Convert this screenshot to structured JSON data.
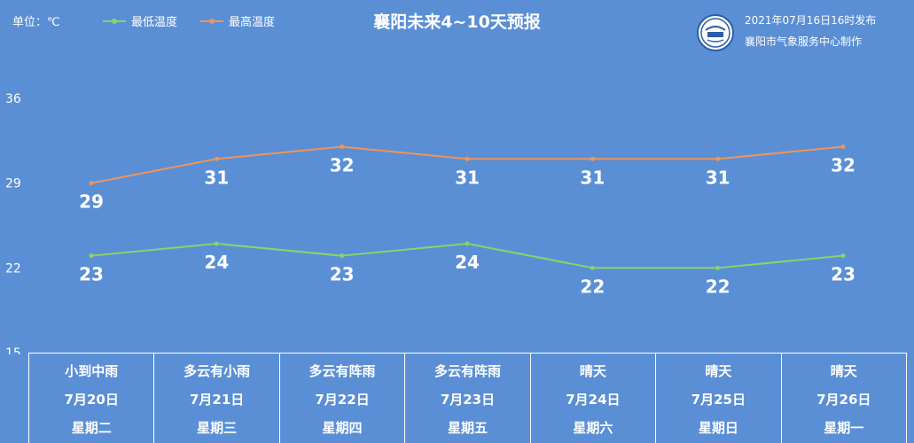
{
  "header": {
    "unit": "单位：℃",
    "title": "襄阳未来4~10天预报",
    "publish_time": "2021年07月16日16时发布",
    "org": "襄阳市气象服务中心制作"
  },
  "colors": {
    "background": "#5a8fd6",
    "min_line": "#8ed16a",
    "max_line": "#f0955a"
  },
  "chart_data": {
    "type": "line",
    "title": "襄阳未来4~10天预报",
    "ylabel": "单位：℃",
    "ylim": [
      15,
      36
    ],
    "yticks": [
      15,
      22,
      29,
      36
    ],
    "categories": [
      "7月20日",
      "7月21日",
      "7月22日",
      "7月23日",
      "7月24日",
      "7月25日",
      "7月26日"
    ],
    "series": [
      {
        "name": "最低温度",
        "values": [
          23,
          24,
          23,
          24,
          22,
          22,
          23
        ]
      },
      {
        "name": "最高温度",
        "values": [
          29,
          31,
          32,
          31,
          31,
          31,
          32
        ]
      }
    ],
    "legend_position": "top-left",
    "grid": false
  },
  "days": [
    {
      "weather": "小到中雨",
      "date": "7月20日",
      "weekday": "星期二"
    },
    {
      "weather": "多云有小雨",
      "date": "7月21日",
      "weekday": "星期三"
    },
    {
      "weather": "多云有阵雨",
      "date": "7月22日",
      "weekday": "星期四"
    },
    {
      "weather": "多云有阵雨",
      "date": "7月23日",
      "weekday": "星期五"
    },
    {
      "weather": "晴天",
      "date": "7月24日",
      "weekday": "星期六"
    },
    {
      "weather": "晴天",
      "date": "7月25日",
      "weekday": "星期日"
    },
    {
      "weather": "晴天",
      "date": "7月26日",
      "weekday": "星期一"
    }
  ]
}
